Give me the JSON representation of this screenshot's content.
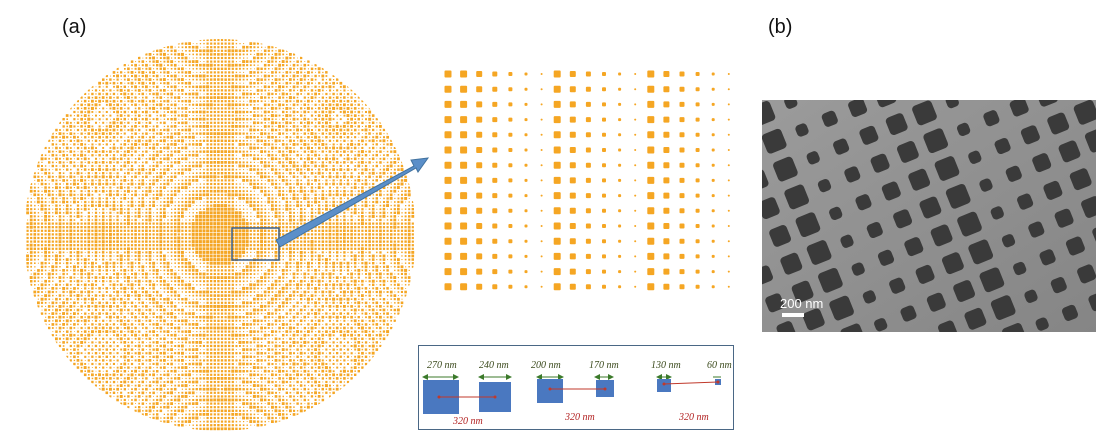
{
  "panels": {
    "a_label": "(a)",
    "b_label": "(b)"
  },
  "colors": {
    "pillar": "#f5a623",
    "arrow": "#5b8fc9",
    "square": "#4a78c0",
    "line": "#c0392b",
    "sem_bg": "#8a8a8a",
    "sem_hole": "#3a3a3a"
  },
  "legend": {
    "widths": [
      "270 nm",
      "240 nm",
      "200 nm",
      "170 nm",
      "130 nm",
      "60 nm"
    ],
    "periods": [
      "320 nm",
      "320 nm",
      "320 nm"
    ]
  },
  "sem": {
    "scale_label": "200 nm"
  }
}
